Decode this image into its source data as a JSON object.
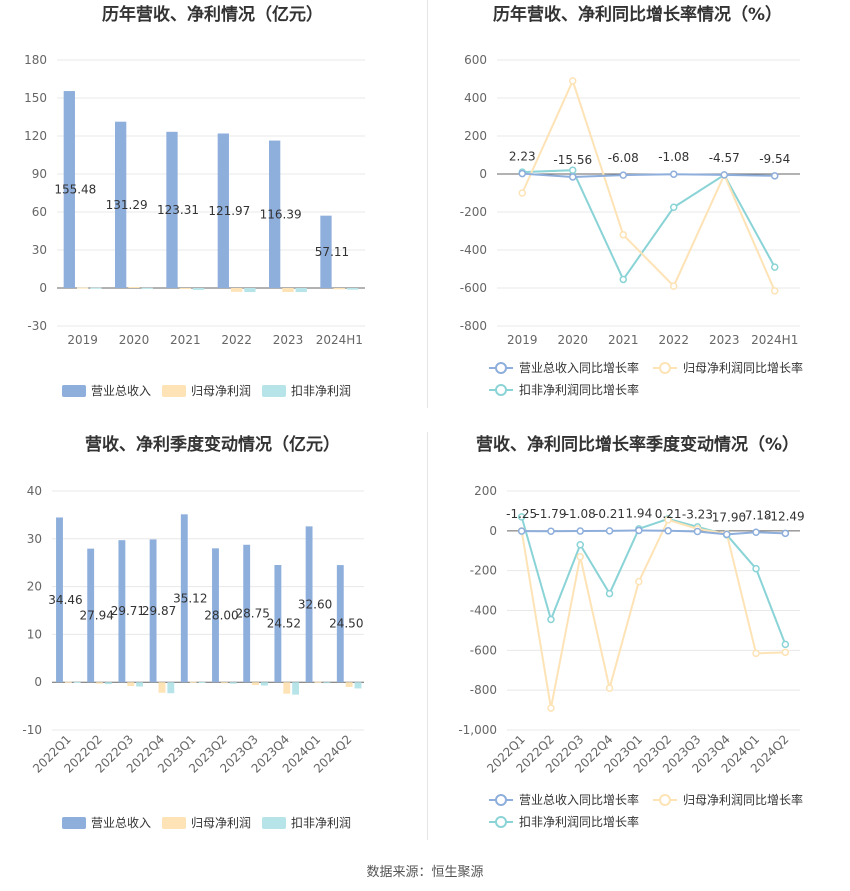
{
  "legend_colors": {
    "revenue": "#8eaedc",
    "net_profit": "#fde3b6",
    "deducted_profit": "#b6e4e8"
  },
  "line_colors": {
    "revenue": "#8eaedc",
    "net_profit": "#fde3b6",
    "deducted_profit": "#8ad3d6"
  },
  "chart_data": [
    {
      "type": "bar",
      "title": "历年营收、净利情况（亿元）",
      "categories": [
        "2019",
        "2020",
        "2021",
        "2022",
        "2023",
        "2024H1"
      ],
      "ylim": [
        -30,
        180
      ],
      "yticks": [
        -30,
        0,
        30,
        60,
        90,
        120,
        150,
        180
      ],
      "series": [
        {
          "name": "营业总收入",
          "values": [
            155.48,
            131.29,
            123.31,
            121.97,
            116.39,
            57.11
          ],
          "labels": [
            "155.48",
            "131.29",
            "123.31",
            "121.97",
            "116.39",
            "57.11"
          ]
        },
        {
          "name": "归母净利润",
          "values": [
            0.3,
            0.8,
            -0.8,
            -3.0,
            -3.2,
            -1.0
          ]
        },
        {
          "name": "扣非净利润",
          "values": [
            0.2,
            0.1,
            -1.5,
            -3.2,
            -3.2,
            -1.3
          ]
        }
      ],
      "legend": "bottom",
      "grid": true
    },
    {
      "type": "line",
      "title": "历年营收、净利同比增长率情况（%）",
      "categories": [
        "2019",
        "2020",
        "2021",
        "2022",
        "2023",
        "2024H1"
      ],
      "ylim": [
        -800,
        600
      ],
      "yticks": [
        -800,
        -600,
        -400,
        -200,
        0,
        200,
        400,
        600
      ],
      "series": [
        {
          "name": "营业总收入同比增长率",
          "values": [
            2.23,
            -15.56,
            -6.08,
            -1.08,
            -4.57,
            -9.54
          ],
          "labels": [
            "2.23",
            "-15.56",
            "-6.08",
            "-1.08",
            "-4.57",
            "-9.54"
          ]
        },
        {
          "name": "归母净利润同比增长率",
          "values": [
            -100,
            490,
            -320,
            -590,
            -5,
            -615
          ]
        },
        {
          "name": "扣非净利润同比增长率",
          "values": [
            10,
            20,
            -555,
            -175,
            -5,
            -490
          ]
        }
      ],
      "legend": "bottom",
      "grid": true
    },
    {
      "type": "bar",
      "title": "营收、净利季度变动情况（亿元）",
      "categories": [
        "2022Q1",
        "2022Q2",
        "2022Q3",
        "2022Q4",
        "2023Q1",
        "2023Q2",
        "2023Q3",
        "2023Q4",
        "2024Q1",
        "2024Q2"
      ],
      "ylim": [
        -10,
        40
      ],
      "yticks": [
        -10,
        0,
        10,
        20,
        30,
        40
      ],
      "series": [
        {
          "name": "营业总收入",
          "values": [
            34.46,
            27.94,
            29.71,
            29.87,
            35.12,
            28.0,
            28.75,
            24.52,
            32.6,
            24.5
          ],
          "labels": [
            "34.46",
            "27.94",
            "29.71",
            "29.87",
            "35.12",
            "28.00",
            "28.75",
            "24.52",
            "32.60",
            "24.50"
          ]
        },
        {
          "name": "归母净利润",
          "values": [
            0.1,
            -0.3,
            -0.8,
            -2.2,
            0.1,
            -0.2,
            -0.6,
            -2.4,
            0.1,
            -1.0
          ]
        },
        {
          "name": "扣非净利润",
          "values": [
            0.05,
            -0.4,
            -0.9,
            -2.3,
            0.05,
            -0.3,
            -0.7,
            -2.6,
            -0.2,
            -1.3
          ]
        }
      ],
      "legend": "bottom",
      "grid": true
    },
    {
      "type": "line",
      "title": "营收、净利同比增长率季度变动情况（%）",
      "categories": [
        "2022Q1",
        "2022Q2",
        "2022Q3",
        "2022Q4",
        "2023Q1",
        "2023Q2",
        "2023Q3",
        "2023Q4",
        "2024Q1",
        "2024Q2"
      ],
      "ylim": [
        -1000,
        200
      ],
      "yticks": [
        -1000,
        -800,
        -600,
        -400,
        -200,
        0,
        200
      ],
      "ytick_labels": [
        "-1,000",
        "-800",
        "-600",
        "-400",
        "-200",
        "0",
        "200"
      ],
      "series": [
        {
          "name": "营业总收入同比增长率",
          "values": [
            -1.25,
            -1.79,
            -1.08,
            -0.21,
            1.94,
            0.21,
            -3.23,
            -17.9,
            -7.18,
            -12.49
          ],
          "labels": [
            "-1.25",
            "-1.79",
            "-1.08",
            "-0.21",
            "1.94",
            "0.21",
            "-3.23",
            "-17.90",
            "-7.18",
            "-12.49"
          ]
        },
        {
          "name": "归母净利润同比增长率",
          "values": [
            0,
            -890,
            -130,
            -790,
            -255,
            55,
            10,
            -15,
            -615,
            -610
          ]
        },
        {
          "name": "扣非净利润同比增长率",
          "values": [
            70,
            -445,
            -70,
            -315,
            10,
            60,
            20,
            -20,
            -190,
            -570
          ]
        }
      ],
      "legend": "bottom",
      "grid": true
    }
  ],
  "source_text": "数据来源：恒生聚源"
}
